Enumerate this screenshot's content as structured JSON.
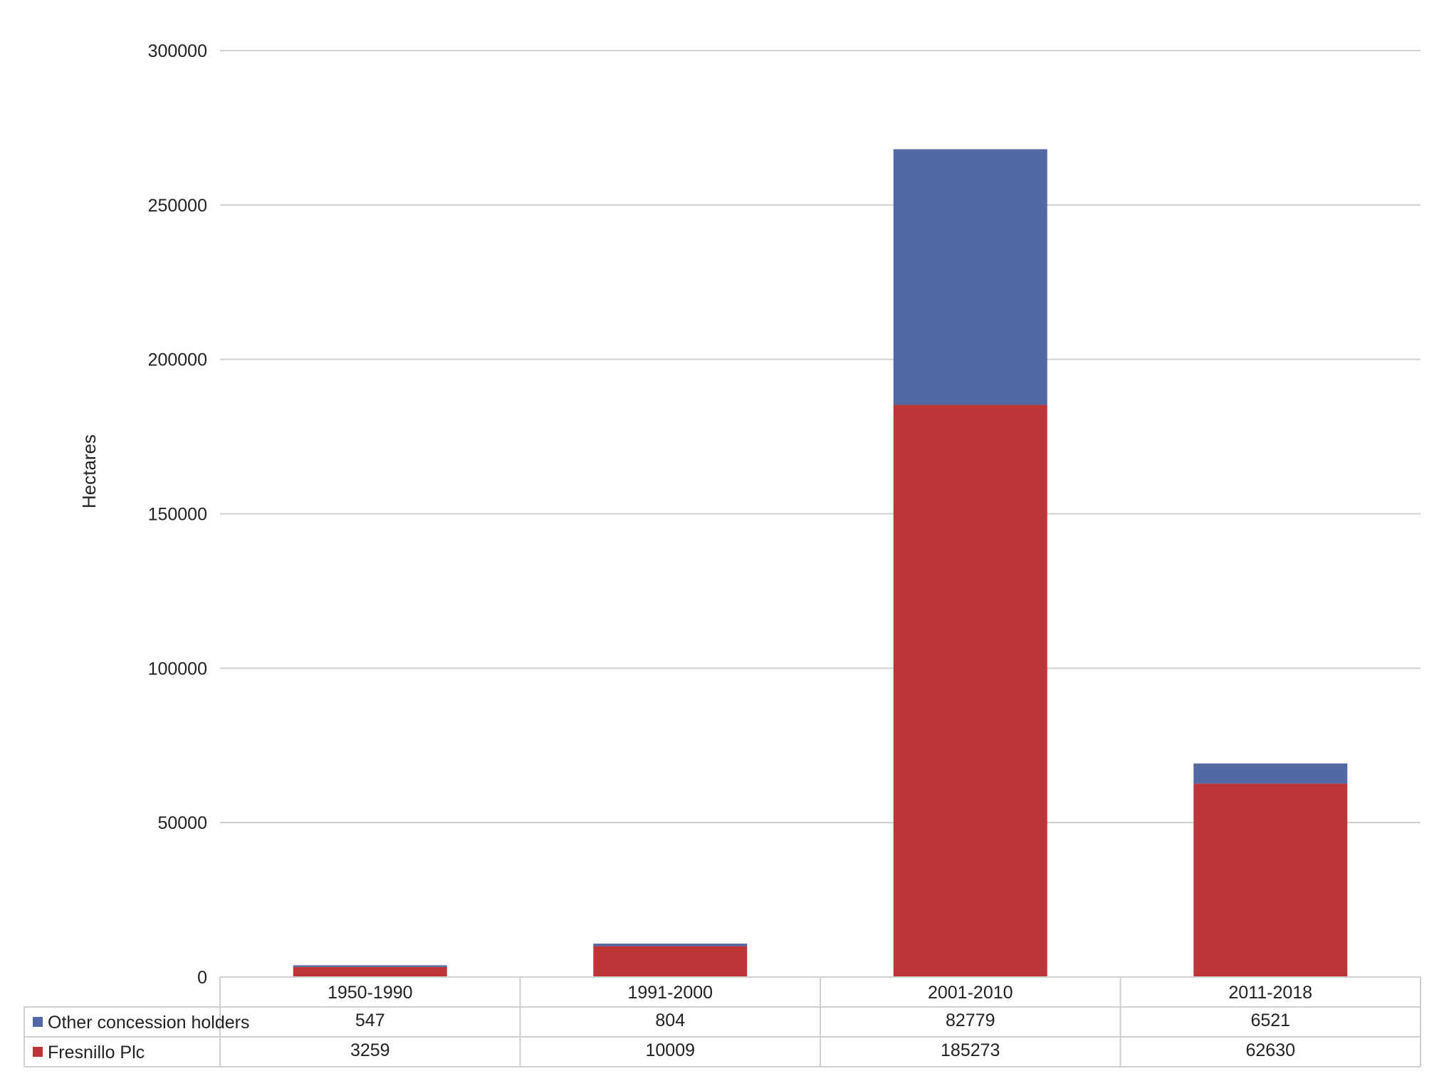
{
  "chart_data": {
    "type": "bar",
    "stacked": true,
    "categories": [
      "1950-1990",
      "1991-2000",
      "2001-2010",
      "2011-2018"
    ],
    "series": [
      {
        "name": "Fresnillo Plc",
        "values": [
          3259,
          10009,
          185273,
          62630
        ],
        "color": "#BE3537"
      },
      {
        "name": "Other concession holders",
        "values": [
          547,
          804,
          82779,
          6521
        ],
        "color": "#5369A3"
      }
    ],
    "ylabel": "Hectares",
    "ylim": [
      0,
      300000
    ],
    "yticks": [
      "0",
      "50000",
      "100000",
      "150000",
      "200000",
      "250000",
      "300000"
    ],
    "grid": true,
    "legend": "data-table",
    "data_table": {
      "rows": [
        {
          "label": "Other concession holders",
          "values": [
            "547",
            "804",
            "82779",
            "6521"
          ]
        },
        {
          "label": "Fresnillo Plc",
          "values": [
            "3259",
            "10009",
            "185273",
            "62630"
          ]
        }
      ]
    }
  }
}
